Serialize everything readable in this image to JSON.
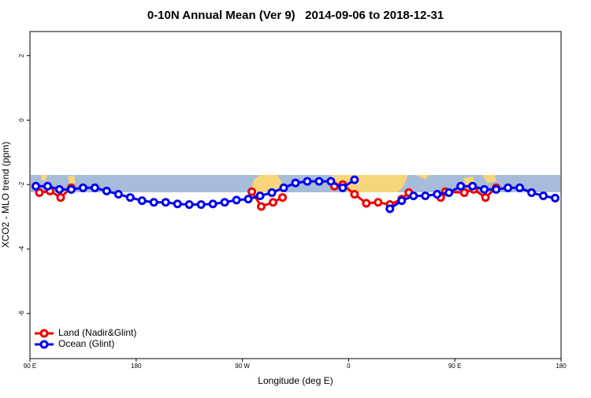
{
  "chart_data": {
    "type": "line",
    "title": "0-10N Annual Mean (Ver 9)   2014-09-06 to 2018-12-31",
    "x_label": "Longitude (deg E)",
    "y_label": "XCO2 - MLO trend (ppm)",
    "xlim": [
      90,
      540
    ],
    "ylim": [
      -7.4,
      2.75
    ],
    "xticks": [
      {
        "value": 90,
        "label": "90 E"
      },
      180,
      {
        "value": 270,
        "label": "90 W"
      },
      {
        "value": 360,
        "label": "0"
      },
      {
        "value": 450,
        "label": "90 E"
      },
      {
        "value": 540,
        "label": "180"
      }
    ],
    "yticks": [
      2,
      0,
      -2,
      -4,
      -6
    ],
    "legend": "bottom-left",
    "series": [
      {
        "name": "Land (Nadir&Glint)",
        "color": "#ee0000",
        "x": [
          98,
          107,
          116,
          125,
          null,
          278,
          286,
          296,
          304,
          null,
          348,
          355,
          365,
          375,
          385,
          395,
          405,
          411,
          null,
          438,
          442,
          458,
          466,
          476,
          485
        ],
        "values": [
          -2.25,
          -2.2,
          -2.4,
          -2.1,
          null,
          -2.22,
          -2.68,
          -2.55,
          -2.4,
          null,
          -2.05,
          -2.0,
          -2.3,
          -2.58,
          -2.55,
          -2.62,
          -2.45,
          -2.25,
          null,
          -2.4,
          -2.22,
          -2.25,
          -2.15,
          -2.4,
          -2.1
        ]
      },
      {
        "name": "Ocean (Glint)",
        "color": "#0000ee",
        "x": [
          95,
          105,
          115,
          125,
          135,
          145,
          155,
          165,
          175,
          185,
          195,
          205,
          215,
          225,
          235,
          245,
          255,
          265,
          275,
          285,
          295,
          305,
          315,
          325,
          335,
          345,
          355,
          365,
          null,
          null,
          395,
          405,
          415,
          425,
          435,
          445,
          455,
          465,
          475,
          485,
          495,
          505,
          515,
          525,
          535
        ],
        "values": [
          -2.05,
          -2.05,
          -2.15,
          -2.15,
          -2.1,
          -2.1,
          -2.2,
          -2.3,
          -2.4,
          -2.5,
          -2.55,
          -2.55,
          -2.6,
          -2.62,
          -2.62,
          -2.6,
          -2.55,
          -2.48,
          -2.45,
          -2.35,
          -2.25,
          -2.1,
          -1.95,
          -1.9,
          -1.9,
          -1.9,
          -2.1,
          -1.85,
          null,
          null,
          -2.75,
          -2.5,
          -2.35,
          -2.35,
          -2.3,
          -2.25,
          -2.05,
          -2.05,
          -2.15,
          -2.15,
          -2.1,
          -2.1,
          -2.25,
          -2.35,
          -2.42
        ]
      }
    ]
  }
}
